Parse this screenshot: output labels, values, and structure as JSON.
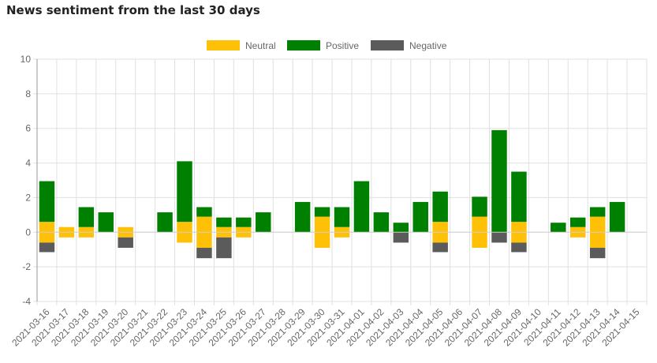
{
  "title": "News sentiment from the last 30 days",
  "colors": {
    "neutral": "#FFC107",
    "positive": "#008000",
    "negative": "#5B5B5B",
    "grid": "#E0E0E0",
    "axis": "#999999"
  },
  "chart_data": {
    "type": "bar",
    "stacked": true,
    "legend_position": "top",
    "grid": true,
    "ylim": [
      -4,
      10
    ],
    "yticks": [
      "10",
      "8",
      "6",
      "4",
      "2",
      "0",
      "-2",
      "-4"
    ],
    "categories": [
      "2021-03-16",
      "2021-03-17",
      "2021-03-18",
      "2021-03-19",
      "2021-03-20",
      "2021-03-21",
      "2021-03-22",
      "2021-03-23",
      "2021-03-24",
      "2021-03-25",
      "2021-03-26",
      "2021-03-27",
      "2021-03-28",
      "2021-03-29",
      "2021-03-30",
      "2021-03-31",
      "2021-04-01",
      "2021-04-02",
      "2021-04-03",
      "2021-04-04",
      "2021-04-05",
      "2021-04-06",
      "2021-04-07",
      "2021-04-08",
      "2021-04-09",
      "2021-04-10",
      "2021-04-11",
      "2021-04-12",
      "2021-04-13",
      "2021-04-14",
      "2021-04-15"
    ],
    "series": [
      {
        "name": "Neutral",
        "values": [
          [
            -0.6,
            0.6
          ],
          [
            -0.3,
            0.3
          ],
          [
            -0.3,
            0.3
          ],
          [
            0,
            0
          ],
          [
            -0.3,
            0.3
          ],
          [
            0,
            0
          ],
          [
            0,
            0
          ],
          [
            -0.6,
            0.6
          ],
          [
            -0.9,
            0.9
          ],
          [
            -0.3,
            0.3
          ],
          [
            -0.3,
            0.3
          ],
          [
            0,
            0
          ],
          [
            0,
            0
          ],
          [
            0,
            0
          ],
          [
            -0.9,
            0.9
          ],
          [
            -0.3,
            0.3
          ],
          [
            0,
            0
          ],
          [
            0,
            0
          ],
          [
            0,
            0
          ],
          [
            0,
            0
          ],
          [
            -0.6,
            0.6
          ],
          [
            0,
            0
          ],
          [
            -0.9,
            0.9
          ],
          [
            0,
            0
          ],
          [
            -0.6,
            0.6
          ],
          [
            0,
            0
          ],
          [
            0,
            0
          ],
          [
            -0.3,
            0.3
          ],
          [
            -0.9,
            0.9
          ],
          [
            0,
            0
          ],
          [
            0,
            0
          ]
        ]
      },
      {
        "name": "Positive",
        "values": [
          2.95,
          0,
          1.45,
          1.15,
          0,
          0,
          1.15,
          4.1,
          1.45,
          0.85,
          0.85,
          1.15,
          0,
          1.75,
          1.45,
          1.45,
          2.95,
          1.15,
          0.55,
          1.75,
          2.35,
          0,
          2.05,
          5.9,
          3.5,
          0,
          0.55,
          0.85,
          1.45,
          1.75,
          0
        ]
      },
      {
        "name": "Negative",
        "values": [
          -1.15,
          0,
          0,
          0,
          -0.9,
          0,
          0,
          0,
          -1.5,
          -1.5,
          0,
          0,
          0,
          0,
          0,
          0,
          0,
          0,
          -0.6,
          0,
          -1.15,
          0,
          0,
          -0.6,
          -1.15,
          0,
          0,
          0,
          -1.5,
          0,
          0
        ]
      }
    ]
  }
}
